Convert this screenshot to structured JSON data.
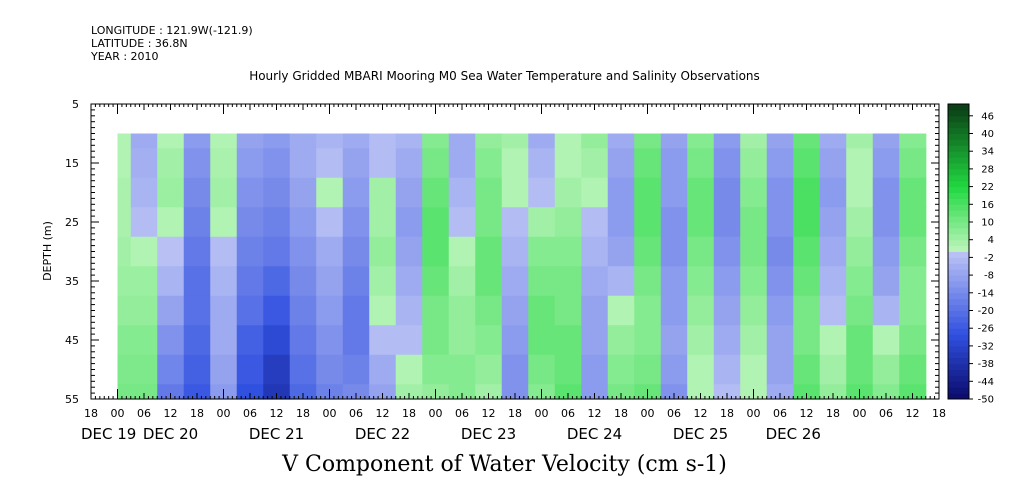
{
  "header": {
    "longitude": "LONGITUDE : 121.9W(-121.9)",
    "latitude": "LATITUDE : 36.8N",
    "year": "YEAR : 2010"
  },
  "chart_data": {
    "type": "heatmap",
    "title": "Hourly Gridded MBARI Mooring M0 Sea Water Temperature and Salinity Observations",
    "variable_label": "V Component of Water Velocity (cm s-1)",
    "ylabel": "DEPTH (m)",
    "yaxis": {
      "ticks": [
        5,
        15,
        25,
        35,
        45,
        55
      ],
      "range": [
        5,
        55
      ],
      "inverted": true
    },
    "xaxis": {
      "range_hours": [
        -6,
        186
      ],
      "hour_ticks": [
        "18",
        "00",
        "06",
        "12",
        "18",
        "00",
        "06",
        "12",
        "18",
        "00",
        "06",
        "12",
        "18",
        "00",
        "06",
        "12",
        "18",
        "00",
        "06",
        "12",
        "18",
        "00",
        "06",
        "12",
        "18",
        "00",
        "06",
        "12",
        "18",
        "00",
        "06",
        "12",
        "18"
      ],
      "day_labels": [
        {
          "label": "DEC 19",
          "hour": -2
        },
        {
          "label": "DEC 20",
          "hour": 12
        },
        {
          "label": "DEC 21",
          "hour": 36
        },
        {
          "label": "DEC 22",
          "hour": 60
        },
        {
          "label": "DEC 23",
          "hour": 84
        },
        {
          "label": "DEC 24",
          "hour": 108
        },
        {
          "label": "DEC 25",
          "hour": 132
        },
        {
          "label": "DEC 26",
          "hour": 153
        }
      ]
    },
    "data_extent": {
      "hours": [
        0,
        183
      ],
      "depth": [
        10,
        55
      ]
    },
    "depths": [
      10,
      15,
      20,
      25,
      30,
      35,
      40,
      45,
      50,
      55
    ],
    "column_hours": [
      0,
      6,
      12,
      18,
      24,
      30,
      36,
      42,
      48,
      54,
      60,
      66,
      72,
      78,
      84,
      90,
      96,
      102,
      108,
      114,
      120,
      126,
      132,
      138,
      144,
      150,
      156,
      162,
      168,
      174,
      180
    ],
    "values": [
      [
        2,
        2,
        3,
        3,
        4,
        5,
        6,
        8,
        9,
        10
      ],
      [
        -6,
        -5,
        -4,
        -2,
        2,
        5,
        6,
        8,
        9,
        10
      ],
      [
        2,
        4,
        5,
        2,
        -1,
        -4,
        -8,
        -12,
        -15,
        -18
      ],
      [
        -10,
        -12,
        -14,
        -16,
        -18,
        -20,
        -20,
        -22,
        -24,
        -26
      ],
      [
        2,
        3,
        4,
        2,
        -2,
        -4,
        -6,
        -6,
        -8,
        -10
      ],
      [
        -8,
        -10,
        -12,
        -14,
        -16,
        -18,
        -20,
        -24,
        -26,
        -28
      ],
      [
        -10,
        -12,
        -14,
        -16,
        -18,
        -22,
        -26,
        -30,
        -34,
        -36
      ],
      [
        -6,
        -6,
        -8,
        -10,
        -12,
        -14,
        -16,
        -18,
        -20,
        -22
      ],
      [
        -4,
        -2,
        2,
        -2,
        -6,
        -8,
        -10,
        -12,
        -14,
        -16
      ],
      [
        -6,
        -8,
        -10,
        -12,
        -14,
        -16,
        -18,
        -18,
        -16,
        -14
      ],
      [
        -2,
        -2,
        4,
        4,
        6,
        4,
        2,
        -2,
        -6,
        -8
      ],
      [
        -4,
        -6,
        -8,
        -10,
        -8,
        -6,
        -4,
        -2,
        2,
        4
      ],
      [
        8,
        10,
        12,
        14,
        14,
        12,
        10,
        10,
        8,
        6
      ],
      [
        -6,
        -6,
        -4,
        -2,
        2,
        4,
        6,
        6,
        8,
        8
      ],
      [
        6,
        8,
        10,
        10,
        12,
        12,
        10,
        8,
        6,
        4
      ],
      [
        4,
        2,
        2,
        -2,
        -4,
        -6,
        -8,
        -10,
        -12,
        -12
      ],
      [
        -6,
        -4,
        -2,
        4,
        8,
        10,
        12,
        12,
        10,
        8
      ],
      [
        2,
        2,
        4,
        6,
        8,
        10,
        10,
        12,
        12,
        14
      ],
      [
        6,
        4,
        2,
        -2,
        -4,
        -6,
        -8,
        -8,
        -10,
        -10
      ],
      [
        -6,
        -8,
        -10,
        -10,
        -8,
        -4,
        2,
        6,
        8,
        10
      ],
      [
        10,
        12,
        14,
        14,
        12,
        10,
        8,
        8,
        10,
        12
      ],
      [
        -8,
        -10,
        -10,
        -12,
        -12,
        -10,
        -10,
        -8,
        -10,
        -12
      ],
      [
        8,
        10,
        12,
        12,
        10,
        8,
        6,
        4,
        2,
        2
      ],
      [
        -10,
        -12,
        -14,
        -14,
        -12,
        -10,
        -8,
        -6,
        -4,
        -2
      ],
      [
        4,
        6,
        8,
        10,
        10,
        8,
        6,
        4,
        2,
        2
      ],
      [
        -8,
        -10,
        -12,
        -12,
        -14,
        -12,
        -10,
        -8,
        -8,
        -6
      ],
      [
        12,
        14,
        16,
        16,
        14,
        12,
        10,
        10,
        12,
        14
      ],
      [
        -6,
        -8,
        -10,
        -8,
        -6,
        -4,
        -2,
        2,
        4,
        6
      ],
      [
        4,
        2,
        2,
        4,
        6,
        8,
        10,
        12,
        12,
        14
      ],
      [
        -8,
        -10,
        -12,
        -12,
        -10,
        -8,
        -4,
        2,
        6,
        8
      ],
      [
        8,
        10,
        12,
        12,
        10,
        8,
        8,
        10,
        12,
        14
      ]
    ],
    "colorbar": {
      "ticks": [
        "46",
        "40",
        "34",
        "28",
        "22",
        "16",
        "10",
        "4",
        "-2",
        "-8",
        "-14",
        "-20",
        "-26",
        "-32",
        "-38",
        "-44",
        "-50"
      ],
      "levels": [
        -50,
        -48,
        -46,
        -44,
        -42,
        -40,
        -38,
        -36,
        -34,
        -32,
        -30,
        -28,
        -26,
        -24,
        -22,
        -20,
        -18,
        -16,
        -14,
        -12,
        -10,
        -8,
        -6,
        -4,
        -2,
        0,
        2,
        4,
        6,
        8,
        10,
        12,
        14,
        16,
        18,
        20,
        22,
        24,
        26,
        28,
        30,
        32,
        34,
        36,
        38,
        40,
        42,
        44,
        46,
        48,
        50
      ]
    },
    "colors": {
      "negative_strong": "#0a0a6a",
      "negative_mid": "#3050e0",
      "negative_weak": "#b8c0f4",
      "positive_weak": "#b8f4b8",
      "positive_mid": "#20d840",
      "positive_strong": "#0a3a14"
    }
  }
}
